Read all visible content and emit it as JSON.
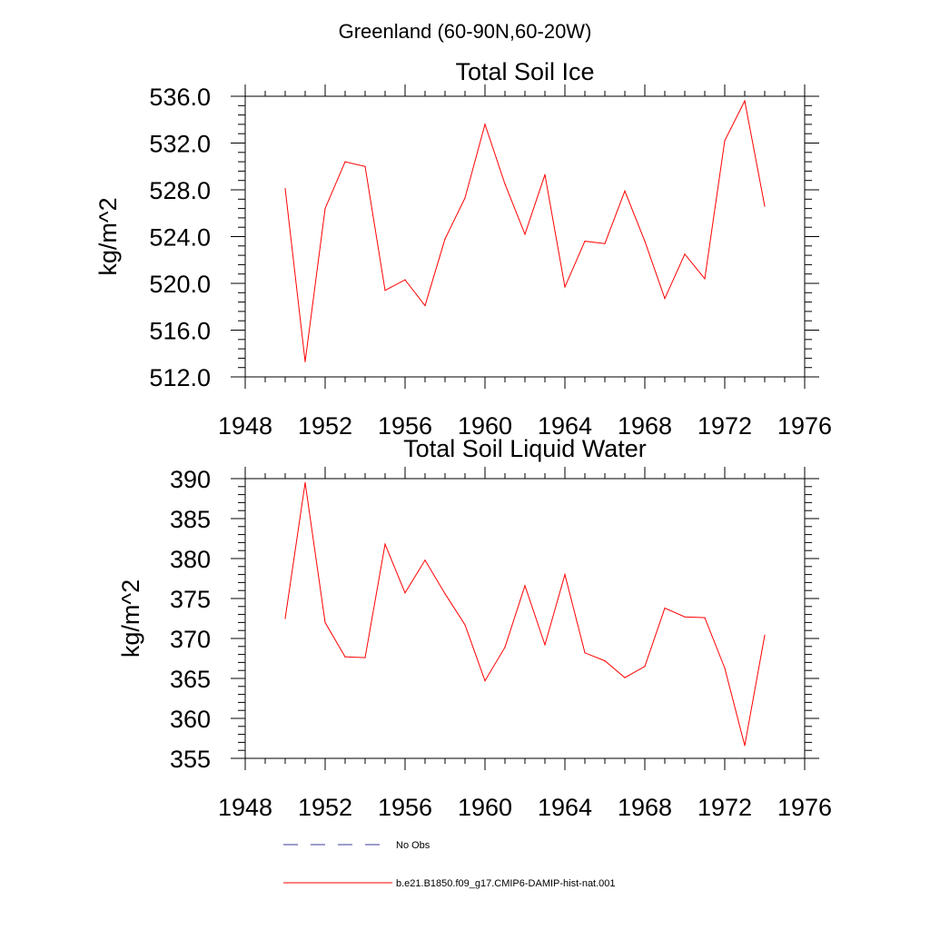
{
  "suptitle": "Greenland (60-90N,60-20W)",
  "legend": {
    "entries": [
      {
        "label": "No Obs",
        "color": "#3b3b9e",
        "dash": "dashed"
      },
      {
        "label": "b.e21.B1850.f09_g17.CMIP6-DAMIP-hist-nat.001",
        "color": "#ff0000",
        "dash": "solid"
      }
    ]
  },
  "chart_data": [
    {
      "type": "line",
      "title": "Total Soil Ice",
      "xlabel": "",
      "ylabel": "kg/m^2",
      "xlim": [
        1948,
        1976
      ],
      "ylim": [
        512,
        536
      ],
      "xticks": [
        1948,
        1952,
        1956,
        1960,
        1964,
        1968,
        1972,
        1976
      ],
      "xtick_labels": [
        "1948",
        "1952",
        "1956",
        "1960",
        "1964",
        "1968",
        "1972",
        "1976"
      ],
      "yticks": [
        512,
        516,
        520,
        524,
        528,
        532,
        536
      ],
      "ytick_labels": [
        "512.0",
        "516.0",
        "520.0",
        "524.0",
        "528.0",
        "532.0",
        "536.0"
      ],
      "series": [
        {
          "color": "#ff0000",
          "x": [
            1950,
            1951,
            1952,
            1953,
            1954,
            1955,
            1956,
            1957,
            1958,
            1959,
            1960,
            1961,
            1962,
            1963,
            1964,
            1965,
            1966,
            1967,
            1968,
            1969,
            1970,
            1971,
            1972,
            1973,
            1974
          ],
          "values": [
            528.1,
            513.3,
            526.4,
            530.4,
            530.0,
            519.4,
            520.3,
            518.1,
            523.8,
            527.3,
            533.6,
            528.5,
            524.2,
            529.3,
            519.7,
            523.6,
            523.4,
            527.9,
            523.6,
            518.7,
            522.5,
            520.4,
            532.2,
            535.6,
            526.6
          ]
        }
      ]
    },
    {
      "type": "line",
      "title": "Total Soil Liquid Water",
      "xlabel": "",
      "ylabel": "kg/m^2",
      "xlim": [
        1948,
        1976
      ],
      "ylim": [
        355,
        390
      ],
      "xticks": [
        1948,
        1952,
        1956,
        1960,
        1964,
        1968,
        1972,
        1976
      ],
      "xtick_labels": [
        "1948",
        "1952",
        "1956",
        "1960",
        "1964",
        "1968",
        "1972",
        "1976"
      ],
      "yticks": [
        355,
        360,
        365,
        370,
        375,
        380,
        385,
        390
      ],
      "ytick_labels": [
        "355",
        "360",
        "365",
        "370",
        "375",
        "380",
        "385",
        "390"
      ],
      "series": [
        {
          "color": "#ff0000",
          "x": [
            1950,
            1951,
            1952,
            1953,
            1954,
            1955,
            1956,
            1957,
            1958,
            1959,
            1960,
            1961,
            1962,
            1963,
            1964,
            1965,
            1966,
            1967,
            1968,
            1969,
            1970,
            1971,
            1972,
            1973,
            1974
          ],
          "values": [
            372.5,
            389.5,
            372.0,
            367.7,
            367.6,
            381.8,
            375.7,
            379.8,
            375.6,
            371.7,
            364.7,
            368.9,
            376.6,
            369.2,
            378.0,
            368.2,
            367.2,
            365.1,
            366.5,
            373.8,
            372.7,
            372.6,
            366.3,
            356.6,
            370.4
          ]
        }
      ]
    }
  ]
}
